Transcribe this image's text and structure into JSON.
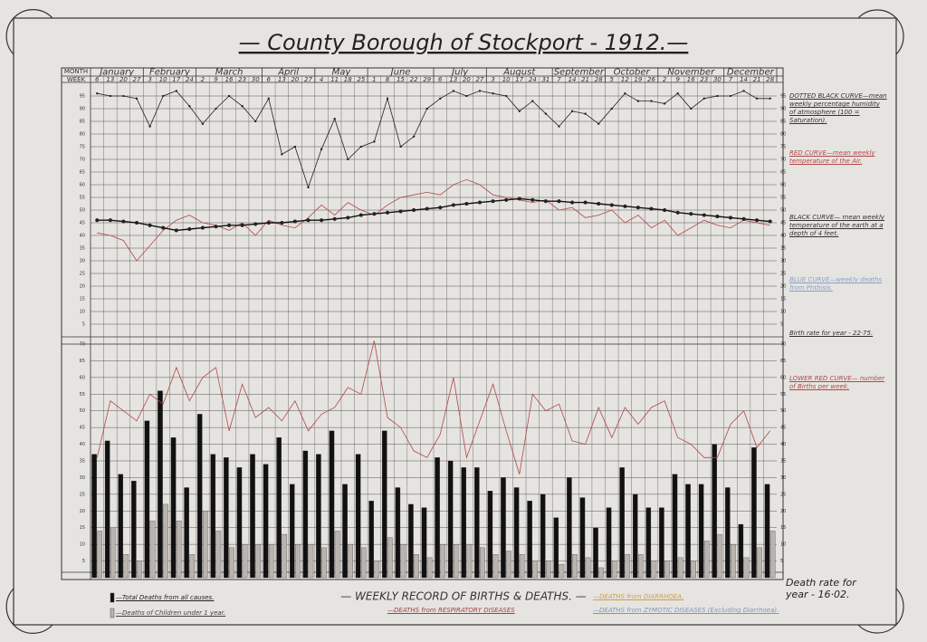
{
  "header": {
    "title": "— County Borough of Stockport - 1912.—",
    "subtitle": "— WEEKLY RECORD OF BIRTHS & DEATHS. —",
    "month_label": "MONTH",
    "week_label": "WEEK"
  },
  "notes": {
    "birth_rate": "Birth rate for year - 22·75.",
    "death_rate": "Death rate for year - 16·02.",
    "other_legend": [
      "BLUE CURVE—weekly deaths from Phthisis.",
      "—DEATHS from RESPIRATORY DISEASES",
      "—DEATHS from DIARRHOEA.",
      "—DEATHS from ZYMOTIC DISEASES (Excluding Diarrhoea)."
    ]
  },
  "chart_data": [
    {
      "type": "line",
      "months": [
        "January",
        "February",
        "March",
        "April",
        "May",
        "June",
        "July",
        "August",
        "September",
        "October",
        "November",
        "December"
      ],
      "categories": [
        "6",
        "13",
        "20",
        "27",
        "3",
        "10",
        "17",
        "24",
        "2",
        "9",
        "16",
        "23",
        "30",
        "6",
        "13",
        "20",
        "27",
        "4",
        "11",
        "18",
        "25",
        "1",
        "8",
        "15",
        "22",
        "29",
        "6",
        "13",
        "20",
        "27",
        "3",
        "10",
        "17",
        "24",
        "31",
        "7",
        "14",
        "21",
        "28",
        "5",
        "12",
        "19",
        "26",
        "2",
        "9",
        "16",
        "23",
        "30",
        "7",
        "14",
        "21",
        "28"
      ],
      "ylim": [
        0,
        100
      ],
      "yticks": [
        5,
        10,
        15,
        20,
        25,
        30,
        35,
        40,
        45,
        50,
        55,
        60,
        65,
        70,
        75,
        80,
        85,
        90,
        95
      ],
      "grid": true,
      "series": [
        {
          "name": "DOTTED BLACK CURVE—mean weekly percentage humidity of atmosphere (100 = Saturation).",
          "color": "#222",
          "style": "dotted",
          "values": [
            96,
            95,
            95,
            94,
            83,
            95,
            97,
            91,
            84,
            90,
            95,
            91,
            85,
            94,
            72,
            75,
            59,
            74,
            86,
            70,
            75,
            77,
            94,
            75,
            79,
            90,
            94,
            97,
            95,
            97,
            96,
            95,
            89,
            93,
            88,
            83,
            89,
            88,
            84,
            90,
            96,
            93,
            93,
            92,
            96,
            90,
            94,
            95,
            95,
            97,
            94,
            94
          ]
        },
        {
          "name": "RED CURVE—mean weekly temperature of the Air.",
          "color": "#b04848",
          "style": "solid",
          "values": [
            41,
            40,
            38,
            30,
            36,
            42,
            46,
            48,
            45,
            44,
            42,
            45,
            40,
            46,
            44,
            43,
            47,
            52,
            48,
            53,
            50,
            48,
            52,
            55,
            56,
            57,
            56,
            60,
            62,
            60,
            56,
            55,
            54,
            53,
            54,
            50,
            51,
            47,
            48,
            50,
            45,
            48,
            43,
            46,
            40,
            43,
            46,
            44,
            43,
            46,
            45,
            44
          ]
        },
        {
          "name": "BLACK CURVE— mean weekly temperature of the earth at a depth of 4 feet.",
          "color": "#111",
          "style": "thick",
          "values": [
            46,
            46,
            45.5,
            45,
            44,
            43,
            42,
            42.5,
            43,
            43.5,
            44,
            44,
            44.5,
            45,
            45,
            45.5,
            46,
            46,
            46.5,
            47,
            48,
            48.5,
            49,
            49.5,
            50,
            50.5,
            51,
            52,
            52.5,
            53,
            53.5,
            54,
            54.5,
            54,
            53.5,
            53.5,
            53,
            53,
            52.5,
            52,
            51.5,
            51,
            50.5,
            50,
            49,
            48.5,
            48,
            47.5,
            47,
            46.5,
            46,
            45.5
          ]
        }
      ]
    },
    {
      "type": "bar",
      "ylim": [
        0,
        70
      ],
      "yticks": [
        5,
        10,
        15,
        20,
        25,
        30,
        35,
        40,
        45,
        50,
        55,
        60,
        65,
        70
      ],
      "grid": true,
      "series": [
        {
          "name": "—Total Deaths from all causes.",
          "color": "#111",
          "kind": "bar",
          "values": [
            37,
            41,
            31,
            29,
            47,
            56,
            42,
            27,
            49,
            37,
            36,
            33,
            37,
            34,
            42,
            28,
            38,
            37,
            44,
            28,
            37,
            23,
            44,
            27,
            22,
            21,
            36,
            35,
            33,
            33,
            26,
            30,
            27,
            23,
            25,
            18,
            30,
            24,
            15,
            21,
            33,
            25,
            21,
            21,
            31,
            28,
            28,
            40,
            27,
            16,
            39,
            28
          ]
        },
        {
          "name": "—Deaths of Children under 1 year.",
          "color": "#b9b4ae",
          "kind": "bar",
          "values": [
            14,
            15,
            7,
            5,
            17,
            22,
            17,
            7,
            20,
            14,
            9,
            10,
            10,
            10,
            13,
            10,
            10,
            9,
            14,
            10,
            9,
            5,
            12,
            10,
            7,
            6,
            10,
            10,
            10,
            9,
            7,
            8,
            7,
            5,
            5,
            4,
            7,
            6,
            3,
            5,
            7,
            7,
            5,
            5,
            6,
            5,
            11,
            13,
            10,
            6,
            9,
            14
          ]
        },
        {
          "name": "LOWER RED CURVE— number of Births per week.",
          "color": "#b04848",
          "kind": "line",
          "values": [
            36,
            53,
            50,
            47,
            55,
            52,
            63,
            53,
            60,
            63,
            44,
            58,
            48,
            51,
            47,
            53,
            44,
            49,
            51,
            57,
            55,
            71,
            48,
            45,
            38,
            36,
            43,
            60,
            36,
            47,
            58,
            44,
            31,
            55,
            50,
            52,
            41,
            40,
            51,
            42,
            51,
            46,
            51,
            53,
            42,
            40,
            36,
            36,
            46,
            50,
            39,
            44
          ]
        }
      ]
    }
  ]
}
